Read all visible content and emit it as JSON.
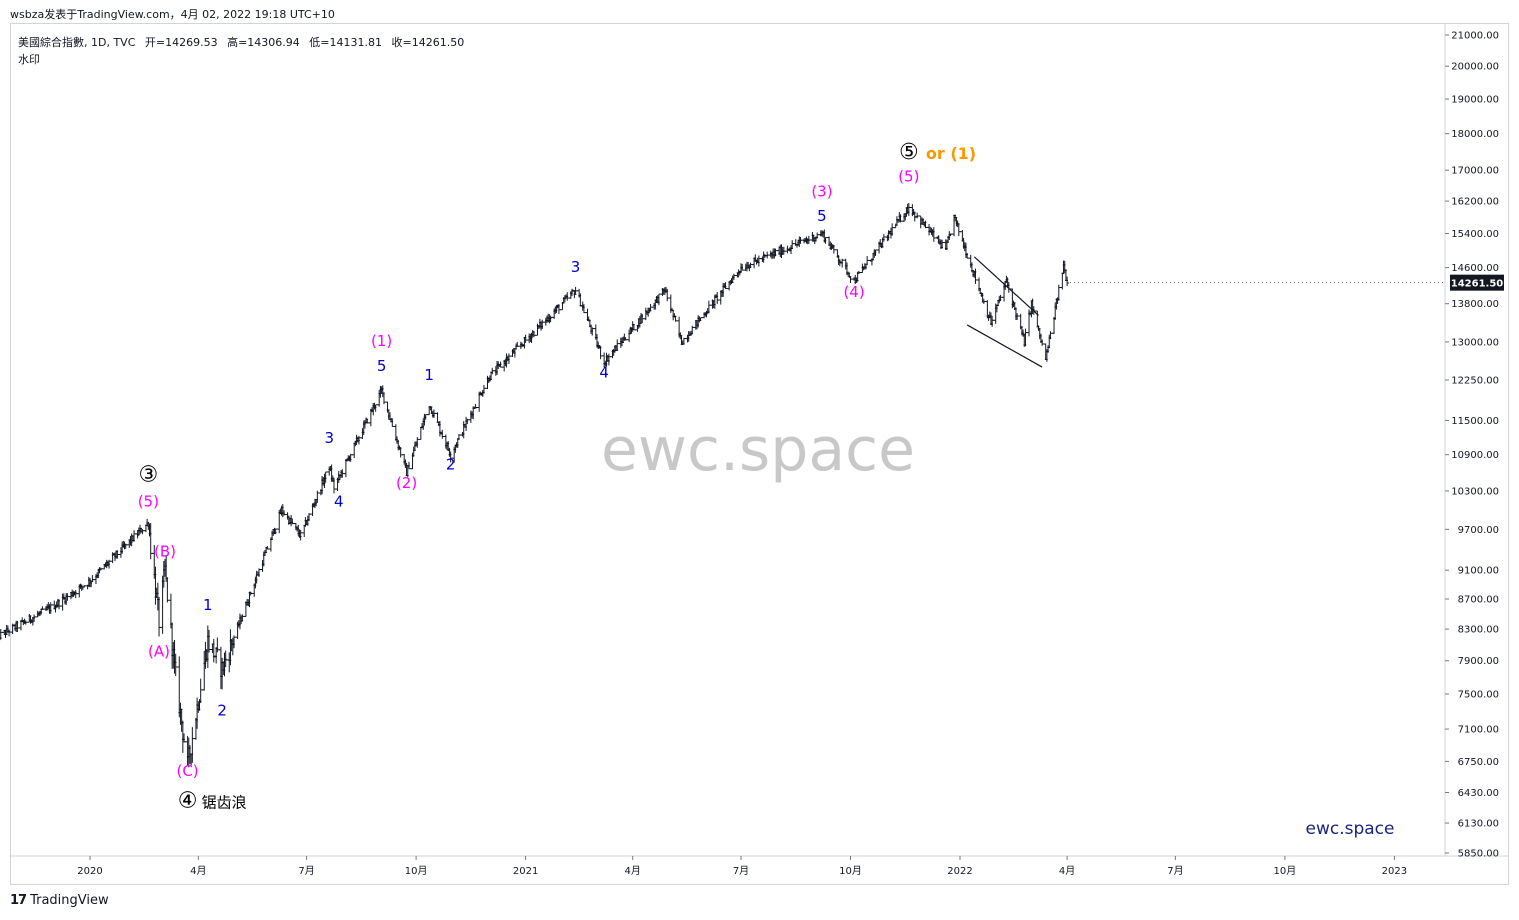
{
  "header": {
    "publish_line": "wsbza发表于TradingView.com，4月 02, 2022 19:18 UTC+10",
    "symbol": "美國綜合指數, 1D, TVC",
    "open_label": "开",
    "open": "=14269.53",
    "high_label": "高",
    "high": "=14306.94",
    "low_label": "低",
    "low": "=14131.81",
    "close_label": "收",
    "close": "=14261.50",
    "watermark_label": "水印"
  },
  "footer": {
    "brand": "TradingView"
  },
  "watermark": {
    "center": "ewc.space",
    "corner": "ewc.space"
  },
  "colors": {
    "magenta": "#ff00ff",
    "blue": "#0000cc",
    "orange": "#ff9800",
    "black": "#000000",
    "price_tag": "#131722",
    "watermark": "#c8c8c8",
    "corner_watermark": "#1a237e"
  },
  "chart_data": {
    "type": "ohlc",
    "title": "美國綜合指數, 1D, TVC",
    "y_scale": "log",
    "ylim": [
      5850,
      21000
    ],
    "yticks": [
      "21000.00",
      "20000.00",
      "19000.00",
      "18000.00",
      "17000.00",
      "16200.00",
      "15400.00",
      "14600.00",
      "13800.00",
      "13000.00",
      "12250.00",
      "11500.00",
      "10900.00",
      "10300.00",
      "9700.00",
      "9100.00",
      "8700.00",
      "8300.00",
      "7900.00",
      "7500.00",
      "7100.00",
      "6750.00",
      "6430.00",
      "6130.00",
      "5850.00"
    ],
    "xticks": [
      "2020",
      "4月",
      "7月",
      "10月",
      "2021",
      "4月",
      "7月",
      "10月",
      "2022",
      "4月",
      "7月",
      "10月",
      "2023"
    ],
    "last_price": "14261.50",
    "series": [
      {
        "key_points": [
          {
            "date": "2019-10-15",
            "close": 8200
          },
          {
            "date": "2019-12-01",
            "close": 8600
          },
          {
            "date": "2020-01-01",
            "close": 8950
          },
          {
            "date": "2020-02-19",
            "close": 9800
          },
          {
            "date": "2020-02-28",
            "close": 8400
          },
          {
            "date": "2020-03-04",
            "close": 9100
          },
          {
            "date": "2020-03-12",
            "close": 7800
          },
          {
            "date": "2020-03-23",
            "close": 6700
          },
          {
            "date": "2020-04-09",
            "close": 8150
          },
          {
            "date": "2020-04-21",
            "close": 7800
          },
          {
            "date": "2020-06-10",
            "close": 10000
          },
          {
            "date": "2020-06-26",
            "close": 9600
          },
          {
            "date": "2020-07-20",
            "close": 10700
          },
          {
            "date": "2020-07-24",
            "close": 10350
          },
          {
            "date": "2020-09-02",
            "close": 12050
          },
          {
            "date": "2020-09-23",
            "close": 10600
          },
          {
            "date": "2020-10-12",
            "close": 11800
          },
          {
            "date": "2020-10-30",
            "close": 10900
          },
          {
            "date": "2020-12-01",
            "close": 12300
          },
          {
            "date": "2021-02-12",
            "close": 14100
          },
          {
            "date": "2021-03-08",
            "close": 12600
          },
          {
            "date": "2021-04-28",
            "close": 14100
          },
          {
            "date": "2021-05-12",
            "close": 13000
          },
          {
            "date": "2021-07-01",
            "close": 14600
          },
          {
            "date": "2021-09-07",
            "close": 15400
          },
          {
            "date": "2021-10-04",
            "close": 14300
          },
          {
            "date": "2021-11-19",
            "close": 16050
          },
          {
            "date": "2021-12-20",
            "close": 15000
          },
          {
            "date": "2021-12-27",
            "close": 15800
          },
          {
            "date": "2022-01-27",
            "close": 13400
          },
          {
            "date": "2022-02-09",
            "close": 14300
          },
          {
            "date": "2022-02-24",
            "close": 13000
          },
          {
            "date": "2022-03-02",
            "close": 13800
          },
          {
            "date": "2022-03-14",
            "close": 12650
          },
          {
            "date": "2022-03-29",
            "close": 14650
          },
          {
            "date": "2022-04-01",
            "close": 14261.5
          }
        ]
      }
    ],
    "annotations": [
      {
        "text": "③",
        "color": "black",
        "date": "2020-02-19",
        "price": 10450
      },
      {
        "text": "(5)",
        "color": "magenta",
        "date": "2020-02-19",
        "price": 10050
      },
      {
        "text": "(B)",
        "color": "magenta",
        "date": "2020-03-04",
        "price": 9300
      },
      {
        "text": "(A)",
        "color": "magenta",
        "date": "2020-02-28",
        "price": 7950
      },
      {
        "text": "1",
        "color": "blue",
        "date": "2020-04-09",
        "price": 8550
      },
      {
        "text": "2",
        "color": "blue",
        "date": "2020-04-21",
        "price": 7250
      },
      {
        "text": "(C)",
        "color": "magenta",
        "date": "2020-03-23",
        "price": 6600
      },
      {
        "text": "④",
        "color": "black",
        "date": "2020-03-23",
        "price": 6280
      },
      {
        "text": "锯齿浪",
        "color": "black",
        "date": "2020-03-23",
        "price": 6280
      },
      {
        "text": "3",
        "color": "blue",
        "date": "2020-07-20",
        "price": 11100
      },
      {
        "text": "4",
        "color": "blue",
        "date": "2020-07-28",
        "price": 10050
      },
      {
        "text": "(1)",
        "color": "magenta",
        "date": "2020-09-02",
        "price": 12920
      },
      {
        "text": "5",
        "color": "blue",
        "date": "2020-09-02",
        "price": 12420
      },
      {
        "text": "(2)",
        "color": "magenta",
        "date": "2020-09-23",
        "price": 10350
      },
      {
        "text": "1",
        "color": "blue",
        "date": "2020-10-12",
        "price": 12250
      },
      {
        "text": "2",
        "color": "blue",
        "date": "2020-10-30",
        "price": 10650
      },
      {
        "text": "3",
        "color": "blue",
        "date": "2021-02-12",
        "price": 14500
      },
      {
        "text": "4",
        "color": "blue",
        "date": "2021-03-08",
        "price": 12300
      },
      {
        "text": "(3)",
        "color": "magenta",
        "date": "2021-09-07",
        "price": 16320
      },
      {
        "text": "5",
        "color": "blue",
        "date": "2021-09-07",
        "price": 15700
      },
      {
        "text": "(4)",
        "color": "magenta",
        "date": "2021-10-04",
        "price": 13950
      },
      {
        "text": "⑤",
        "color": "black",
        "date": "2021-11-19",
        "price": 17300
      },
      {
        "text": "or (1)",
        "color": "orange",
        "date": "2021-11-30",
        "price": 17300
      },
      {
        "text": "(5)",
        "color": "magenta",
        "date": "2021-11-19",
        "price": 16700
      }
    ],
    "drawings": [
      {
        "type": "trendline",
        "from": {
          "date": "2022-01-13",
          "price": 14850
        },
        "to": {
          "date": "2022-03-08",
          "price": 13550
        }
      },
      {
        "type": "trendline",
        "from": {
          "date": "2022-01-07",
          "price": 13350
        },
        "to": {
          "date": "2022-03-11",
          "price": 12500
        }
      }
    ]
  }
}
